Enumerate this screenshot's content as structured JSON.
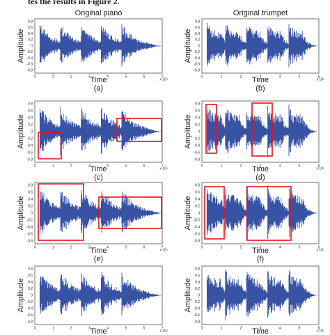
{
  "header": {
    "text": "tes the results in Figure 2."
  },
  "axes": {
    "left": {
      "yticks": [
        "0.8",
        "0.6",
        "0.4",
        "0.2",
        "0",
        "-0.2",
        "-0.4",
        "-0.6",
        "-0.8"
      ],
      "xticks": [
        "0",
        "1",
        "2",
        "3",
        "4",
        "5",
        "6",
        "7"
      ],
      "exponent": "x 10⁵"
    },
    "right": {
      "yticks": [
        "0.8",
        "0.6",
        "0.4",
        "0.2",
        "0",
        "-0.2",
        "-0.4",
        "-0.6",
        "-0.8"
      ],
      "xticks": [
        "0",
        "1",
        "2",
        "3",
        "4",
        "5",
        "6"
      ],
      "exponent": "x 10⁵"
    }
  },
  "panels": [
    {
      "title": "Original piano",
      "ylabel": "Amplitude",
      "xlabel": "Time",
      "caption": "(a)"
    },
    {
      "title": "Original trumpet",
      "ylabel": "Amplitude",
      "xlabel": "Time",
      "caption": "(b)"
    },
    {
      "ylabel": "Amplitude",
      "xlabel": "Time",
      "caption": "(c)"
    },
    {
      "ylabel": "Amplitude",
      "xlabel": "Time",
      "caption": "(d)"
    },
    {
      "ylabel": "Amplitude",
      "xlabel": "Time",
      "caption": "(e)"
    },
    {
      "ylabel": "Amplitude",
      "xlabel": "Time",
      "caption": "(f)"
    },
    {
      "ylabel": "Amplitude",
      "xlabel": "Time"
    },
    {
      "ylabel": "Amplitude",
      "xlabel": "Time"
    }
  ]
}
